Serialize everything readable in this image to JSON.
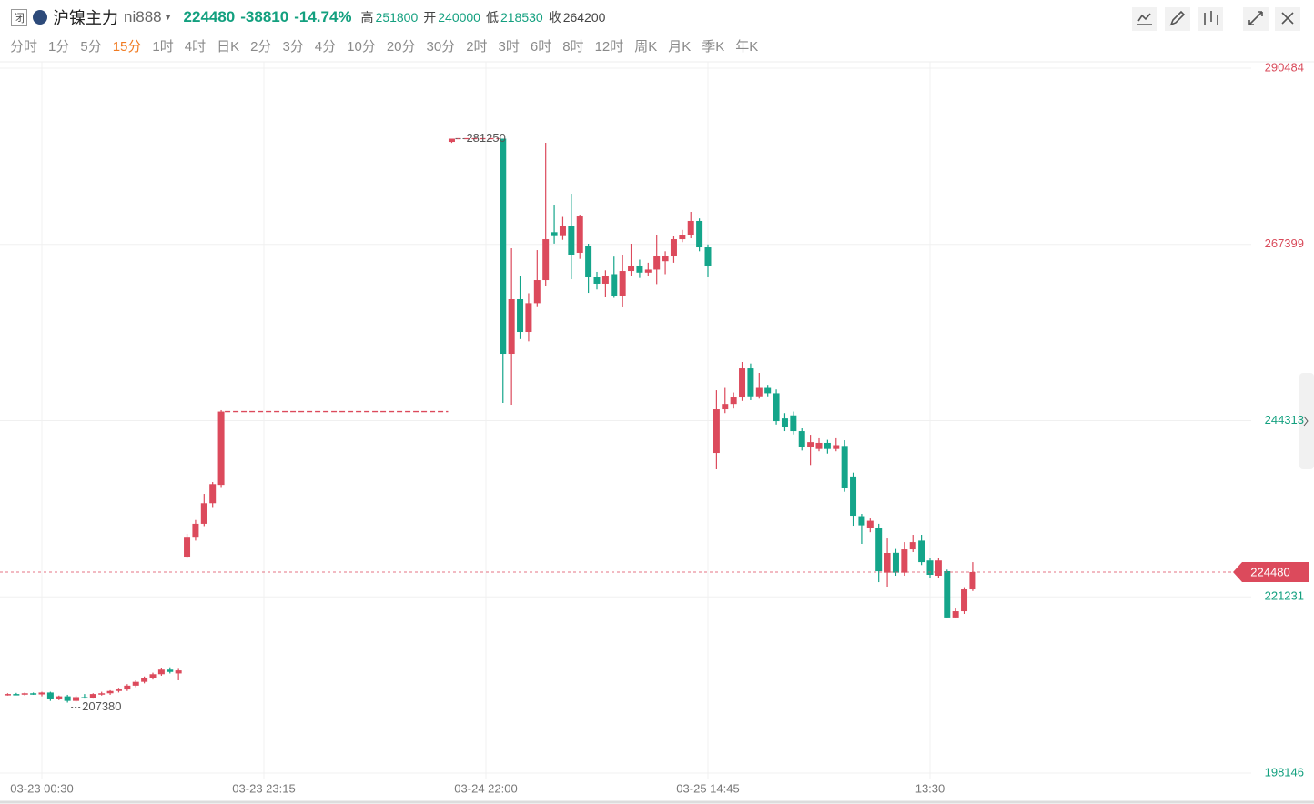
{
  "header": {
    "status": "闭",
    "name": "沪镍主力",
    "code": "ni888",
    "last": 224480,
    "change": -38810,
    "change_pct": "-14.74%",
    "high_label": "高",
    "high": 251800,
    "open_label": "开",
    "open": 240000,
    "low_label": "低",
    "low": 218530,
    "prev_close_label": "收",
    "prev_close": 264200
  },
  "tabs": {
    "items": [
      "分时",
      "1分",
      "5分",
      "15分",
      "1时",
      "4时",
      "日K",
      "2分",
      "3分",
      "4分",
      "10分",
      "20分",
      "30分",
      "2时",
      "3时",
      "6时",
      "8时",
      "12时",
      "周K",
      "月K",
      "季K",
      "年K"
    ],
    "active": 3
  },
  "chart_data": {
    "type": "candlestick",
    "up_color": "#dc4a5c",
    "down_color": "#14a58a",
    "grid": true,
    "gap_line": true,
    "ylim": [
      198146,
      290484
    ],
    "yticks": [
      198146,
      221231,
      244313,
      267399,
      290484
    ],
    "last_price": 224480,
    "high_marker": 281250,
    "low_marker": 207380,
    "categories": [
      null,
      null,
      null,
      null,
      "03-23 00:30",
      null,
      null,
      null,
      null,
      null,
      null,
      null,
      null,
      null,
      null,
      null,
      null,
      null,
      null,
      null,
      null,
      null,
      null,
      null,
      null,
      null,
      null,
      null,
      null,
      null,
      "03-23 23:15",
      null,
      null,
      null,
      null,
      null,
      null,
      null,
      null,
      null,
      null,
      null,
      null,
      null,
      null,
      null,
      null,
      null,
      null,
      null,
      null,
      null,
      null,
      null,
      null,
      null,
      "03-24 22:00",
      null,
      null,
      null,
      null,
      null,
      null,
      null,
      null,
      null,
      null,
      null,
      null,
      null,
      null,
      null,
      null,
      null,
      null,
      null,
      null,
      null,
      null,
      null,
      null,
      null,
      "03-25 14:45",
      null,
      null,
      null,
      null,
      null,
      null,
      null,
      null,
      null,
      null,
      null,
      null,
      null,
      null,
      null,
      null,
      null,
      null,
      null,
      null,
      null,
      null,
      null,
      null,
      null,
      "13:30",
      null,
      null,
      null,
      null,
      null
    ],
    "open": [
      208420,
      208500,
      208420,
      208600,
      208450,
      208700,
      207800,
      208200,
      207600,
      208100,
      208000,
      208500,
      208600,
      208900,
      209100,
      209600,
      210100,
      210600,
      211100,
      211700,
      211200,
      226500,
      229100,
      230800,
      233500,
      235900,
      null,
      null,
      null,
      null,
      null,
      null,
      null,
      null,
      null,
      null,
      null,
      null,
      null,
      null,
      null,
      null,
      null,
      null,
      null,
      null,
      null,
      null,
      null,
      null,
      null,
      null,
      280830,
      null,
      null,
      null,
      null,
      null,
      281250,
      253070,
      260220,
      255930,
      259700,
      262720,
      269000,
      268600,
      269870,
      266300,
      267250,
      263080,
      262250,
      263500,
      260580,
      263910,
      264600,
      263700,
      264100,
      265200,
      265820,
      268080,
      268680,
      270470,
      267010,
      240080,
      245800,
      246500,
      247350,
      251160,
      247500,
      248600,
      247900,
      244600,
      245000,
      242940,
      240800,
      240600,
      241400,
      240600,
      241000,
      237000,
      231800,
      230200,
      230300,
      224400,
      227000,
      224400,
      227450,
      228600,
      226000,
      224000,
      224600,
      218530,
      219350,
      222210
    ],
    "high": [
      208600,
      208650,
      208700,
      208700,
      208800,
      208800,
      208300,
      208400,
      208300,
      208500,
      208600,
      208800,
      209000,
      209200,
      209800,
      210300,
      210800,
      211300,
      211900,
      212000,
      211800,
      229480,
      231300,
      234720,
      236270,
      245690,
      null,
      null,
      null,
      null,
      null,
      null,
      null,
      null,
      null,
      null,
      null,
      null,
      null,
      null,
      null,
      null,
      null,
      null,
      null,
      null,
      null,
      null,
      null,
      null,
      null,
      null,
      281250,
      null,
      null,
      null,
      null,
      null,
      281250,
      266890,
      263320,
      261000,
      266650,
      280710,
      272610,
      271000,
      274040,
      271300,
      267490,
      263800,
      264000,
      265800,
      266060,
      267490,
      265400,
      265000,
      268680,
      266500,
      268500,
      269300,
      271660,
      270800,
      267400,
      248300,
      248600,
      248000,
      252000,
      251800,
      250570,
      249000,
      248400,
      245300,
      245500,
      243300,
      242460,
      242000,
      241800,
      242000,
      241750,
      237500,
      232100,
      231500,
      230800,
      228880,
      227500,
      228400,
      229360,
      229360,
      226300,
      226300,
      224800,
      219700,
      222500,
      225780
    ],
    "low": [
      208300,
      208350,
      208300,
      208400,
      208200,
      207600,
      207700,
      207380,
      207500,
      207900,
      207900,
      208300,
      208400,
      208700,
      208900,
      209400,
      209900,
      210400,
      210900,
      211200,
      210300,
      226400,
      228600,
      230500,
      233000,
      235500,
      null,
      null,
      null,
      null,
      null,
      null,
      null,
      null,
      null,
      null,
      null,
      null,
      null,
      null,
      null,
      null,
      null,
      null,
      null,
      null,
      null,
      null,
      null,
      null,
      null,
      null,
      280700,
      null,
      null,
      null,
      null,
      null,
      246640,
      246400,
      255000,
      254700,
      259300,
      262000,
      267500,
      268000,
      262840,
      265500,
      261050,
      261500,
      260460,
      260400,
      259270,
      263300,
      263000,
      263300,
      262200,
      263500,
      265000,
      267700,
      268200,
      266500,
      263080,
      237940,
      245300,
      245900,
      246900,
      247000,
      247200,
      247500,
      243800,
      242940,
      242500,
      240400,
      238500,
      240300,
      240000,
      240300,
      235000,
      230550,
      228170,
      229700,
      223160,
      222570,
      224000,
      224000,
      227100,
      225400,
      223700,
      223760,
      218530,
      218530,
      219000,
      222000
    ],
    "close": [
      208500,
      208420,
      208600,
      208450,
      208700,
      207800,
      208200,
      207600,
      208100,
      208000,
      208500,
      208600,
      208900,
      209100,
      209600,
      210100,
      210600,
      211100,
      211700,
      211400,
      211600,
      229100,
      230800,
      233500,
      236000,
      245500,
      null,
      null,
      null,
      null,
      null,
      null,
      null,
      null,
      null,
      null,
      null,
      null,
      null,
      null,
      null,
      null,
      null,
      null,
      null,
      null,
      null,
      null,
      null,
      null,
      null,
      null,
      281250,
      null,
      null,
      null,
      null,
      null,
      253070,
      260220,
      255930,
      259700,
      262720,
      268080,
      268600,
      269870,
      266060,
      271060,
      263080,
      262250,
      263300,
      260580,
      263910,
      264600,
      263700,
      264100,
      265820,
      265900,
      268080,
      268680,
      270470,
      267010,
      264630,
      245800,
      246500,
      247350,
      251160,
      247500,
      248600,
      247900,
      244250,
      243500,
      242940,
      240800,
      241500,
      241400,
      240600,
      241100,
      235440,
      231860,
      230600,
      231200,
      224590,
      226980,
      224400,
      227450,
      228400,
      225780,
      224120,
      226000,
      218530,
      219350,
      222210,
      224480
    ]
  }
}
